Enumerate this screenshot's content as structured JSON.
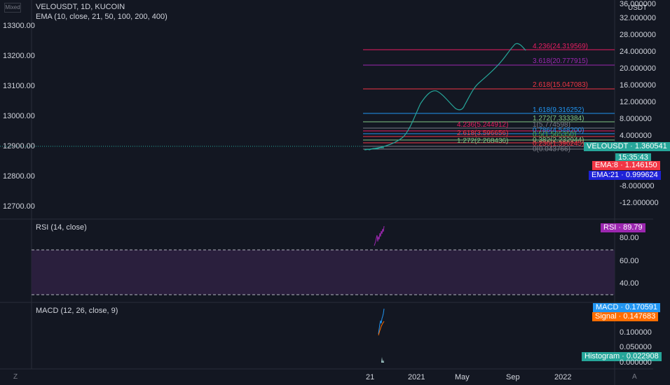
{
  "header": {
    "scale_label": "Mixed",
    "symbol_line": "VELOUSDT, 1D, KUCOIN",
    "ema_line": "EMA (10, close, 21, 50, 100, 200, 400)",
    "currency": "USDT"
  },
  "left_axis": {
    "ticks": [
      "13300.00",
      "13200.00",
      "13100.00",
      "13000.00",
      "12900.00",
      "12800.00",
      "12700.00"
    ]
  },
  "right_axis": {
    "ticks": [
      "36.000000",
      "32.000000",
      "28.000000",
      "24.000000",
      "20.000000",
      "16.000000",
      "12.000000",
      "8.000000",
      "4.000000",
      "-8.000000",
      "-12.000000"
    ]
  },
  "price_tags": {
    "symbol": {
      "text": "VELOUSDT · 1.360541",
      "color": "#26a69a"
    },
    "countdown": {
      "text": "15:35:43",
      "color": "#26a69a"
    },
    "ema8": {
      "text": "EMA:8 · 1.146150",
      "color": "#f23645"
    },
    "ema21": {
      "text": "EMA:21 · 0.999624",
      "color": "#1e22d8"
    }
  },
  "fib_upper": [
    {
      "label": "4.236(24.319569)",
      "color": "#e91e63"
    },
    {
      "label": "3.618(20.777915)",
      "color": "#9c27b0"
    },
    {
      "label": "2.618(15.047083)",
      "color": "#f23645"
    },
    {
      "label": "1.618(9.316252)",
      "color": "#2196f3"
    },
    {
      "label": "1.272(7.333384)",
      "color": "#81c784"
    },
    {
      "label": "1(5.774598)",
      "color": "#787b86"
    },
    {
      "label": "0.786(4.548200)",
      "color": "#2196f3"
    },
    {
      "label": "0.382(2.232944)",
      "color": "#81c784"
    },
    {
      "label": "0.236(1.396245)",
      "color": "#f23645"
    },
    {
      "label": "0(0.043766)",
      "color": "#787b86"
    }
  ],
  "fib_lower_clutter": [
    {
      "label": "4.236(5.244912)",
      "color": "#e91e63"
    },
    {
      "label": "2.618(3.596656)",
      "color": "#f23645"
    },
    {
      "label": "1.272(2.268436)",
      "color": "#81c784"
    },
    {
      "label": "0.5(1.565350)",
      "color": "#4caf50"
    }
  ],
  "rsi": {
    "title": "RSI (14, close)",
    "tag": "RSI · 89.79",
    "tag_color": "#9c27b0",
    "ticks": [
      "80.00",
      "60.00",
      "40.00"
    ]
  },
  "macd": {
    "title": "MACD (12, 26, close, 9)",
    "tags": [
      {
        "text": "MACD · 0.170591",
        "color": "#2196f3"
      },
      {
        "text": "Signal · 0.147683",
        "color": "#ff6d00"
      },
      {
        "text": "Histogram · 0.022908",
        "color": "#26a69a"
      }
    ],
    "ticks": [
      "0.100000",
      "0.050000",
      "0.000000"
    ]
  },
  "time_axis": {
    "labels": [
      "21",
      "2021",
      "May",
      "Sep",
      "2022"
    ]
  },
  "corner": {
    "left": "Z",
    "right": "A"
  },
  "colors": {
    "background": "#131722",
    "grid": "#1e222d",
    "price_line": "#26a69a",
    "fib_curve": "#26a69a",
    "rsi_band": "#2a1f3d"
  }
}
